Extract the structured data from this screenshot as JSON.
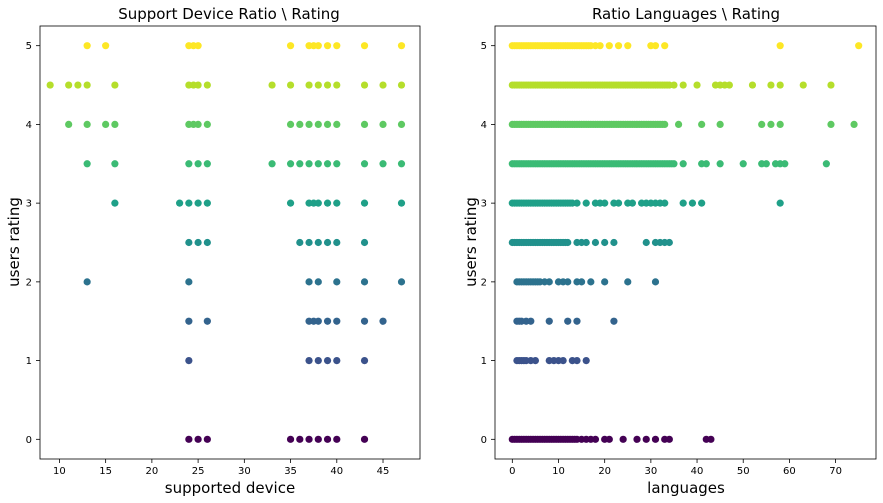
{
  "chart_data": [
    {
      "type": "scatter",
      "title": "Support Device Ratio \\ Rating",
      "xlabel": "supported device",
      "ylabel": "users rating",
      "xlim": [
        7.9,
        49.0
      ],
      "ylim": [
        -0.25,
        5.25
      ],
      "xticks": [
        10,
        15,
        20,
        25,
        30,
        35,
        40,
        45
      ],
      "yticks": [
        0,
        1,
        2,
        3,
        4,
        5
      ],
      "grid": false,
      "colormap": "viridis",
      "points": [
        {
          "x": 13,
          "y": 5
        },
        {
          "x": 15,
          "y": 5
        },
        {
          "x": 24,
          "y": 5
        },
        {
          "x": 24.5,
          "y": 5
        },
        {
          "x": 25,
          "y": 5
        },
        {
          "x": 35,
          "y": 5
        },
        {
          "x": 37,
          "y": 5
        },
        {
          "x": 37.5,
          "y": 5
        },
        {
          "x": 38,
          "y": 5
        },
        {
          "x": 39,
          "y": 5
        },
        {
          "x": 40,
          "y": 5
        },
        {
          "x": 43,
          "y": 5
        },
        {
          "x": 47,
          "y": 5
        },
        {
          "x": 9,
          "y": 4.5
        },
        {
          "x": 11,
          "y": 4.5
        },
        {
          "x": 12,
          "y": 4.5
        },
        {
          "x": 13,
          "y": 4.5
        },
        {
          "x": 16,
          "y": 4.5
        },
        {
          "x": 24,
          "y": 4.5
        },
        {
          "x": 24.5,
          "y": 4.5
        },
        {
          "x": 25,
          "y": 4.5
        },
        {
          "x": 26,
          "y": 4.5
        },
        {
          "x": 33,
          "y": 4.5
        },
        {
          "x": 35,
          "y": 4.5
        },
        {
          "x": 37,
          "y": 4.5
        },
        {
          "x": 38,
          "y": 4.5
        },
        {
          "x": 39,
          "y": 4.5
        },
        {
          "x": 40,
          "y": 4.5
        },
        {
          "x": 43,
          "y": 4.5
        },
        {
          "x": 45,
          "y": 4.5
        },
        {
          "x": 47,
          "y": 4.5
        },
        {
          "x": 11,
          "y": 4
        },
        {
          "x": 13,
          "y": 4
        },
        {
          "x": 15,
          "y": 4
        },
        {
          "x": 16,
          "y": 4
        },
        {
          "x": 24,
          "y": 4
        },
        {
          "x": 24.5,
          "y": 4
        },
        {
          "x": 25,
          "y": 4
        },
        {
          "x": 26,
          "y": 4
        },
        {
          "x": 35,
          "y": 4
        },
        {
          "x": 36,
          "y": 4
        },
        {
          "x": 37,
          "y": 4
        },
        {
          "x": 38,
          "y": 4
        },
        {
          "x": 39,
          "y": 4
        },
        {
          "x": 40,
          "y": 4
        },
        {
          "x": 43,
          "y": 4
        },
        {
          "x": 45,
          "y": 4
        },
        {
          "x": 47,
          "y": 4
        },
        {
          "x": 13,
          "y": 3.5
        },
        {
          "x": 16,
          "y": 3.5
        },
        {
          "x": 24,
          "y": 3.5
        },
        {
          "x": 25,
          "y": 3.5
        },
        {
          "x": 26,
          "y": 3.5
        },
        {
          "x": 33,
          "y": 3.5
        },
        {
          "x": 35,
          "y": 3.5
        },
        {
          "x": 36,
          "y": 3.5
        },
        {
          "x": 37,
          "y": 3.5
        },
        {
          "x": 38,
          "y": 3.5
        },
        {
          "x": 39,
          "y": 3.5
        },
        {
          "x": 40,
          "y": 3.5
        },
        {
          "x": 43,
          "y": 3.5
        },
        {
          "x": 45,
          "y": 3.5
        },
        {
          "x": 47,
          "y": 3.5
        },
        {
          "x": 16,
          "y": 3
        },
        {
          "x": 23,
          "y": 3
        },
        {
          "x": 24,
          "y": 3
        },
        {
          "x": 25,
          "y": 3
        },
        {
          "x": 26,
          "y": 3
        },
        {
          "x": 35,
          "y": 3
        },
        {
          "x": 37,
          "y": 3
        },
        {
          "x": 37.5,
          "y": 3
        },
        {
          "x": 38,
          "y": 3
        },
        {
          "x": 39,
          "y": 3
        },
        {
          "x": 40,
          "y": 3
        },
        {
          "x": 43,
          "y": 3
        },
        {
          "x": 47,
          "y": 3
        },
        {
          "x": 24,
          "y": 2.5
        },
        {
          "x": 25,
          "y": 2.5
        },
        {
          "x": 26,
          "y": 2.5
        },
        {
          "x": 36,
          "y": 2.5
        },
        {
          "x": 37,
          "y": 2.5
        },
        {
          "x": 38,
          "y": 2.5
        },
        {
          "x": 39,
          "y": 2.5
        },
        {
          "x": 40,
          "y": 2.5
        },
        {
          "x": 43,
          "y": 2.5
        },
        {
          "x": 13,
          "y": 2
        },
        {
          "x": 24,
          "y": 2
        },
        {
          "x": 37,
          "y": 2
        },
        {
          "x": 38,
          "y": 2
        },
        {
          "x": 40,
          "y": 2
        },
        {
          "x": 43,
          "y": 2
        },
        {
          "x": 47,
          "y": 2
        },
        {
          "x": 24,
          "y": 1.5
        },
        {
          "x": 26,
          "y": 1.5
        },
        {
          "x": 37,
          "y": 1.5
        },
        {
          "x": 37.5,
          "y": 1.5
        },
        {
          "x": 38,
          "y": 1.5
        },
        {
          "x": 39,
          "y": 1.5
        },
        {
          "x": 40,
          "y": 1.5
        },
        {
          "x": 43,
          "y": 1.5
        },
        {
          "x": 45,
          "y": 1.5
        },
        {
          "x": 24,
          "y": 1
        },
        {
          "x": 37,
          "y": 1
        },
        {
          "x": 38,
          "y": 1
        },
        {
          "x": 39,
          "y": 1
        },
        {
          "x": 40,
          "y": 1
        },
        {
          "x": 43,
          "y": 1
        },
        {
          "x": 24,
          "y": 0
        },
        {
          "x": 25,
          "y": 0
        },
        {
          "x": 26,
          "y": 0
        },
        {
          "x": 35,
          "y": 0
        },
        {
          "x": 36,
          "y": 0
        },
        {
          "x": 37,
          "y": 0
        },
        {
          "x": 38,
          "y": 0
        },
        {
          "x": 39,
          "y": 0
        },
        {
          "x": 40,
          "y": 0
        },
        {
          "x": 43,
          "y": 0
        }
      ]
    },
    {
      "type": "scatter",
      "title": "Ratio Languages \\ Rating",
      "xlabel": "languages",
      "ylabel": "users rating",
      "xlim": [
        -3.75,
        78.75
      ],
      "ylim": [
        -0.25,
        5.25
      ],
      "xticks": [
        0,
        10,
        20,
        30,
        40,
        50,
        60,
        70
      ],
      "yticks": [
        0,
        1,
        2,
        3,
        4,
        5
      ],
      "grid": false,
      "colormap": "viridis",
      "dense_runs": [
        {
          "y": 5,
          "from": 0,
          "to": 17
        },
        {
          "y": 4.5,
          "from": 0,
          "to": 34
        },
        {
          "y": 4,
          "from": 0,
          "to": 33
        },
        {
          "y": 3.5,
          "from": 0,
          "to": 35
        },
        {
          "y": 3,
          "from": 0,
          "to": 13
        },
        {
          "y": 2.5,
          "from": 0,
          "to": 12
        },
        {
          "y": 2,
          "from": 1,
          "to": 6
        },
        {
          "y": 1.5,
          "from": 1,
          "to": 2
        },
        {
          "y": 1,
          "from": 1,
          "to": 3
        },
        {
          "y": 0,
          "from": 0,
          "to": 14
        }
      ],
      "points": [
        {
          "x": 18,
          "y": 5
        },
        {
          "x": 19,
          "y": 5
        },
        {
          "x": 21,
          "y": 5
        },
        {
          "x": 23,
          "y": 5
        },
        {
          "x": 25,
          "y": 5
        },
        {
          "x": 30,
          "y": 5
        },
        {
          "x": 31,
          "y": 5
        },
        {
          "x": 33,
          "y": 5
        },
        {
          "x": 58,
          "y": 5
        },
        {
          "x": 75,
          "y": 5
        },
        {
          "x": 35,
          "y": 4.5
        },
        {
          "x": 37,
          "y": 4.5
        },
        {
          "x": 40,
          "y": 4.5
        },
        {
          "x": 44,
          "y": 4.5
        },
        {
          "x": 45,
          "y": 4.5
        },
        {
          "x": 46,
          "y": 4.5
        },
        {
          "x": 47,
          "y": 4.5
        },
        {
          "x": 52,
          "y": 4.5
        },
        {
          "x": 56,
          "y": 4.5
        },
        {
          "x": 58,
          "y": 4.5
        },
        {
          "x": 63,
          "y": 4.5
        },
        {
          "x": 69,
          "y": 4.5
        },
        {
          "x": 36,
          "y": 4
        },
        {
          "x": 41,
          "y": 4
        },
        {
          "x": 45,
          "y": 4
        },
        {
          "x": 54,
          "y": 4
        },
        {
          "x": 56,
          "y": 4
        },
        {
          "x": 58,
          "y": 4
        },
        {
          "x": 69,
          "y": 4
        },
        {
          "x": 74,
          "y": 4
        },
        {
          "x": 37,
          "y": 3.5
        },
        {
          "x": 41,
          "y": 3.5
        },
        {
          "x": 42,
          "y": 3.5
        },
        {
          "x": 45,
          "y": 3.5
        },
        {
          "x": 50,
          "y": 3.5
        },
        {
          "x": 54,
          "y": 3.5
        },
        {
          "x": 55,
          "y": 3.5
        },
        {
          "x": 57,
          "y": 3.5
        },
        {
          "x": 58,
          "y": 3.5
        },
        {
          "x": 59,
          "y": 3.5
        },
        {
          "x": 68,
          "y": 3.5
        },
        {
          "x": 14,
          "y": 3
        },
        {
          "x": 16,
          "y": 3
        },
        {
          "x": 18,
          "y": 3
        },
        {
          "x": 19,
          "y": 3
        },
        {
          "x": 20,
          "y": 3
        },
        {
          "x": 22,
          "y": 3
        },
        {
          "x": 23,
          "y": 3
        },
        {
          "x": 25,
          "y": 3
        },
        {
          "x": 26,
          "y": 3
        },
        {
          "x": 28,
          "y": 3
        },
        {
          "x": 29,
          "y": 3
        },
        {
          "x": 30,
          "y": 3
        },
        {
          "x": 31,
          "y": 3
        },
        {
          "x": 32,
          "y": 3
        },
        {
          "x": 33,
          "y": 3
        },
        {
          "x": 37,
          "y": 3
        },
        {
          "x": 39,
          "y": 3
        },
        {
          "x": 41,
          "y": 3
        },
        {
          "x": 58,
          "y": 3
        },
        {
          "x": 14,
          "y": 2.5
        },
        {
          "x": 15,
          "y": 2.5
        },
        {
          "x": 16,
          "y": 2.5
        },
        {
          "x": 18,
          "y": 2.5
        },
        {
          "x": 20,
          "y": 2.5
        },
        {
          "x": 22,
          "y": 2.5
        },
        {
          "x": 29,
          "y": 2.5
        },
        {
          "x": 31,
          "y": 2.5
        },
        {
          "x": 32,
          "y": 2.5
        },
        {
          "x": 33,
          "y": 2.5
        },
        {
          "x": 34,
          "y": 2.5
        },
        {
          "x": 7,
          "y": 2
        },
        {
          "x": 8,
          "y": 2
        },
        {
          "x": 10,
          "y": 2
        },
        {
          "x": 11,
          "y": 2
        },
        {
          "x": 12,
          "y": 2
        },
        {
          "x": 14,
          "y": 2
        },
        {
          "x": 15,
          "y": 2
        },
        {
          "x": 17,
          "y": 2
        },
        {
          "x": 20,
          "y": 2
        },
        {
          "x": 25,
          "y": 2
        },
        {
          "x": 31,
          "y": 2
        },
        {
          "x": 3,
          "y": 1.5
        },
        {
          "x": 4,
          "y": 1.5
        },
        {
          "x": 8,
          "y": 1.5
        },
        {
          "x": 12,
          "y": 1.5
        },
        {
          "x": 14,
          "y": 1.5
        },
        {
          "x": 22,
          "y": 1.5
        },
        {
          "x": 4,
          "y": 1
        },
        {
          "x": 5,
          "y": 1
        },
        {
          "x": 8,
          "y": 1
        },
        {
          "x": 9,
          "y": 1
        },
        {
          "x": 10,
          "y": 1
        },
        {
          "x": 11,
          "y": 1
        },
        {
          "x": 13,
          "y": 1
        },
        {
          "x": 14,
          "y": 1
        },
        {
          "x": 16,
          "y": 1
        },
        {
          "x": 15,
          "y": 0
        },
        {
          "x": 16,
          "y": 0
        },
        {
          "x": 17,
          "y": 0
        },
        {
          "x": 18,
          "y": 0
        },
        {
          "x": 20,
          "y": 0
        },
        {
          "x": 21,
          "y": 0
        },
        {
          "x": 24,
          "y": 0
        },
        {
          "x": 27,
          "y": 0
        },
        {
          "x": 29,
          "y": 0
        },
        {
          "x": 31,
          "y": 0
        },
        {
          "x": 33,
          "y": 0
        },
        {
          "x": 34,
          "y": 0
        },
        {
          "x": 42,
          "y": 0
        },
        {
          "x": 43,
          "y": 0
        }
      ]
    }
  ]
}
